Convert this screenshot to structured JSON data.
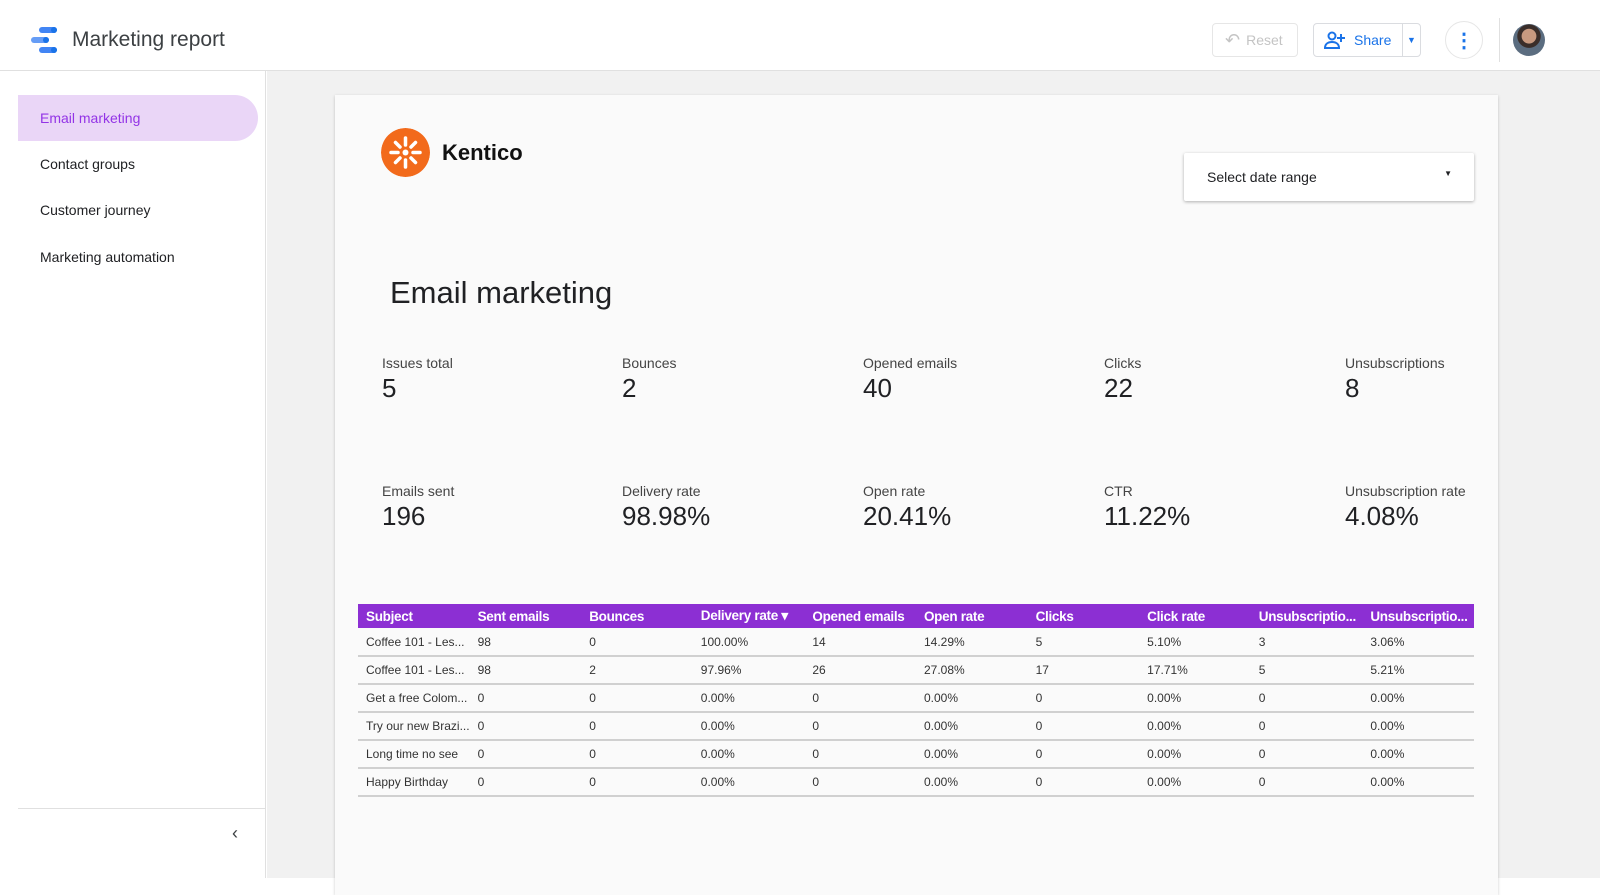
{
  "header": {
    "title": "Marketing report",
    "reset_label": "Reset",
    "share_label": "Share"
  },
  "sidebar": {
    "items": [
      {
        "label": "Email marketing",
        "active": true
      },
      {
        "label": "Contact groups"
      },
      {
        "label": "Customer journey"
      },
      {
        "label": "Marketing automation"
      }
    ]
  },
  "report": {
    "brand": "Kentico",
    "brand_color": "#f26a1b",
    "accent": "#8c2fd3",
    "date_range_placeholder": "Select date range",
    "heading": "Email marketing",
    "kpis_row1": [
      {
        "label": "Issues total",
        "value": "5"
      },
      {
        "label": "Bounces",
        "value": "2"
      },
      {
        "label": "Opened emails",
        "value": "40"
      },
      {
        "label": "Clicks",
        "value": "22"
      },
      {
        "label": "Unsubscriptions",
        "value": "8"
      }
    ],
    "kpis_row2": [
      {
        "label": "Emails sent",
        "value": "196"
      },
      {
        "label": "Delivery rate",
        "value": "98.98%"
      },
      {
        "label": "Open rate",
        "value": "20.41%"
      },
      {
        "label": "CTR",
        "value": "11.22%"
      },
      {
        "label": "Unsubscription rate",
        "value": "4.08%"
      }
    ],
    "table": {
      "columns": [
        "Subject",
        "Sent emails",
        "Bounces",
        "Delivery rate ▾",
        "Opened emails",
        "Open rate",
        "Clicks",
        "Click rate",
        "Unsubscriptio...",
        "Unsubscriptio..."
      ],
      "rows": [
        [
          "Coffee 101 - Les...",
          "98",
          "0",
          "100.00%",
          "14",
          "14.29%",
          "5",
          "5.10%",
          "3",
          "3.06%"
        ],
        [
          "Coffee 101 - Les...",
          "98",
          "2",
          "97.96%",
          "26",
          "27.08%",
          "17",
          "17.71%",
          "5",
          "5.21%"
        ],
        [
          "Get a free Colom...",
          "0",
          "0",
          "0.00%",
          "0",
          "0.00%",
          "0",
          "0.00%",
          "0",
          "0.00%"
        ],
        [
          "Try our new Brazi...",
          "0",
          "0",
          "0.00%",
          "0",
          "0.00%",
          "0",
          "0.00%",
          "0",
          "0.00%"
        ],
        [
          "Long time no see",
          "0",
          "0",
          "0.00%",
          "0",
          "0.00%",
          "0",
          "0.00%",
          "0",
          "0.00%"
        ],
        [
          "Happy Birthday",
          "0",
          "0",
          "0.00%",
          "0",
          "0.00%",
          "0",
          "0.00%",
          "0",
          "0.00%"
        ]
      ]
    }
  }
}
